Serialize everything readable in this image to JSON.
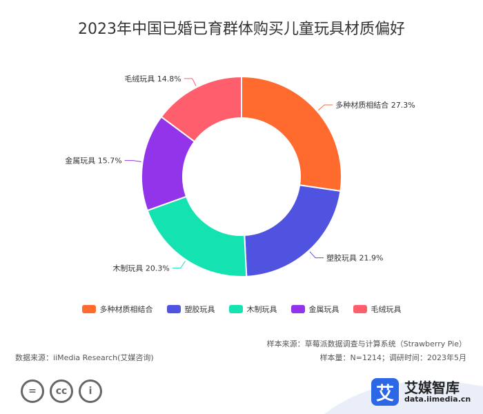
{
  "chart_data": {
    "type": "pie",
    "title": "2023年中国已婚已育群体购买儿童玩具材质偏好",
    "categories": [
      "多种材质相结合",
      "塑胶玩具",
      "木制玩具",
      "金属玩具",
      "毛绒玩具"
    ],
    "values": [
      27.3,
      21.9,
      20.3,
      15.7,
      14.8
    ],
    "data_labels": [
      "多种材质相结合 27.3%",
      "塑胶玩具 21.9%",
      "木制玩具 20.3%",
      "金属玩具 15.7%",
      "毛绒玩具 14.8%"
    ],
    "colors": [
      "#ff6a2f",
      "#4f53e0",
      "#14e2b0",
      "#9234ea",
      "#ff5e6c"
    ],
    "donut": true,
    "legend_position": "bottom"
  },
  "legend": [
    {
      "label": "多种材质相结合",
      "color": "#ff6a2f"
    },
    {
      "label": "塑胶玩具",
      "color": "#4f53e0"
    },
    {
      "label": "木制玩具",
      "color": "#14e2b0"
    },
    {
      "label": "金属玩具",
      "color": "#9234ea"
    },
    {
      "label": "毛绒玩具",
      "color": "#ff5e6c"
    }
  ],
  "source": {
    "sample_source": "样本来源：草莓派数据调查与计算系统（Strawberry Pie）",
    "data_source": "数据来源：iiMedia Research(艾媒咨询)",
    "sample_size": "样本量：N=1214；调研时间：2023年5月"
  },
  "footer": {
    "cc_icons": [
      "equals-icon",
      "cc-icon",
      "person-icon"
    ],
    "cc_glyphs": [
      "=",
      "cc",
      "i"
    ],
    "logo_mark": "艾",
    "logo_name": "艾媒智库",
    "logo_url": "data.iimedia.cn"
  }
}
